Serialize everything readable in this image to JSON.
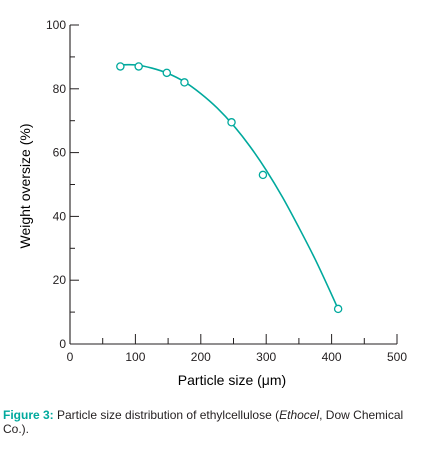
{
  "chart_data": {
    "type": "scatter",
    "xlabel": "Particle size (μm)",
    "ylabel": "Weight oversize (%)",
    "xlim": [
      0,
      500
    ],
    "ylim": [
      0,
      100
    ],
    "x_ticks": [
      "0",
      "100",
      "200",
      "300",
      "400",
      "500"
    ],
    "y_ticks": [
      "0",
      "20",
      "40",
      "60",
      "80",
      "100"
    ],
    "grid": false,
    "series": [
      {
        "marker": "open-circle",
        "x": [
          77,
          105,
          148,
          175,
          247,
          295,
          410
        ],
        "y": [
          87,
          87,
          85,
          82,
          69.5,
          53,
          11
        ]
      }
    ],
    "fit_curve": {
      "x": [
        77,
        100,
        125,
        150,
        175,
        200,
        225,
        250,
        275,
        300,
        325,
        350,
        375,
        400,
        412
      ],
      "y": [
        87.5,
        87.5,
        86.5,
        84.8,
        82.2,
        78.5,
        74,
        68.5,
        62,
        54.5,
        46,
        36.5,
        26.5,
        15.5,
        10
      ]
    },
    "color": "#00a99d",
    "axis_color": "#231f20"
  },
  "caption": {
    "label": "Figure 3:",
    "text_before": " Particle size distribution of ethylcellulose (",
    "italic": "Ethocel",
    "text_after": ", Dow Chemical Co.)."
  }
}
